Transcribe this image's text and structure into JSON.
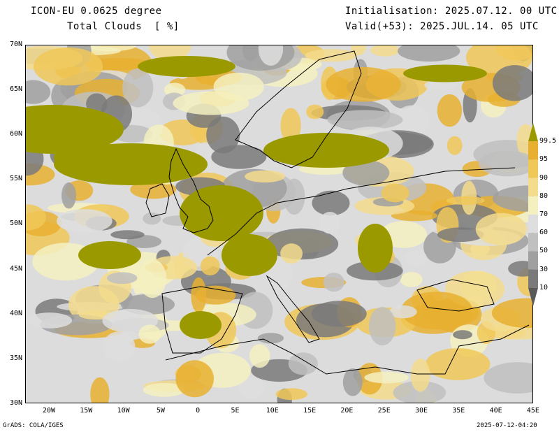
{
  "header": {
    "model": "ICON-EU 0.0625 degree",
    "field": "Total Clouds  [ %]",
    "initialisation": "Initialisation: 2025.07.12. 00 UTC",
    "valid": "Valid(+53): 2025.JUL.14. 05 UTC"
  },
  "map": {
    "lat_labels": [
      "70N",
      "65N",
      "60N",
      "55N",
      "50N",
      "45N",
      "40N",
      "35N",
      "30N"
    ],
    "lon_labels": [
      "20W",
      "15W",
      "10W",
      "5W",
      "0",
      "5E",
      "10E",
      "15E",
      "20E",
      "25E",
      "30E",
      "35E",
      "40E",
      "45E"
    ],
    "lon_range": [
      -23,
      45
    ],
    "lat_range": [
      30,
      70
    ],
    "background_color": "#dcdcdc",
    "coastline_color": "#000000"
  },
  "colorbar": {
    "levels": [
      "99.5",
      "95",
      "90",
      "80",
      "70",
      "60",
      "50",
      "30",
      "10"
    ],
    "colors": [
      "#9a9a00",
      "#e8b030",
      "#f0c858",
      "#f3dc8c",
      "#f5f0c0",
      "#dedede",
      "#c0c0c0",
      "#a0a0a0",
      "#7a7a7a",
      "#5a5a5a"
    ]
  },
  "footer": {
    "left": "GrADS: COLA/IGES",
    "right": "2025-07-12-04:20"
  }
}
